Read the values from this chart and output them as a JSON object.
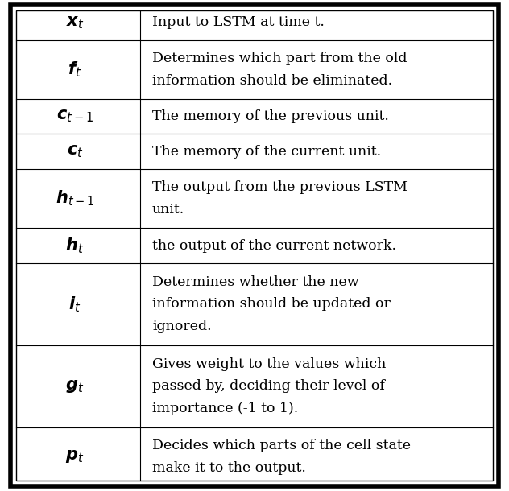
{
  "rows": [
    {
      "symbol": "$\\boldsymbol{x}_{t}$",
      "description": "Input to LSTM at time t.",
      "n_lines": 1
    },
    {
      "symbol": "$\\boldsymbol{f}_{t}$",
      "description": "Determines which part from the old\ninformation should be eliminated.",
      "n_lines": 2
    },
    {
      "symbol": "$\\boldsymbol{c}_{t-1}$",
      "description": "The memory of the previous unit.",
      "n_lines": 1
    },
    {
      "symbol": "$\\boldsymbol{c}_{t}$",
      "description": "The memory of the current unit.",
      "n_lines": 1
    },
    {
      "symbol": "$\\boldsymbol{h}_{t-1}$",
      "description": "The output from the previous LSTM\nunit.",
      "n_lines": 2
    },
    {
      "symbol": "$\\boldsymbol{h}_{t}$",
      "description": "the output of the current network.",
      "n_lines": 1
    },
    {
      "symbol": "$\\boldsymbol{i}_{t}$",
      "description": "Determines whether the new\ninformation should be updated or\nignored.",
      "n_lines": 3
    },
    {
      "symbol": "$\\boldsymbol{g}_{t}$",
      "description": "Gives weight to the values which\npassed by, deciding their level of\nimportance (-1 to 1).",
      "n_lines": 3
    },
    {
      "symbol": "$\\boldsymbol{p}_{t}$",
      "description": "Decides which parts of the cell state\nmake it to the output.",
      "n_lines": 2
    }
  ],
  "background_color": "#ffffff",
  "border_color": "#000000",
  "text_color": "#000000",
  "symbol_fontsize": 15,
  "desc_fontsize": 12.5,
  "fig_width": 6.32,
  "fig_height": 6.1
}
